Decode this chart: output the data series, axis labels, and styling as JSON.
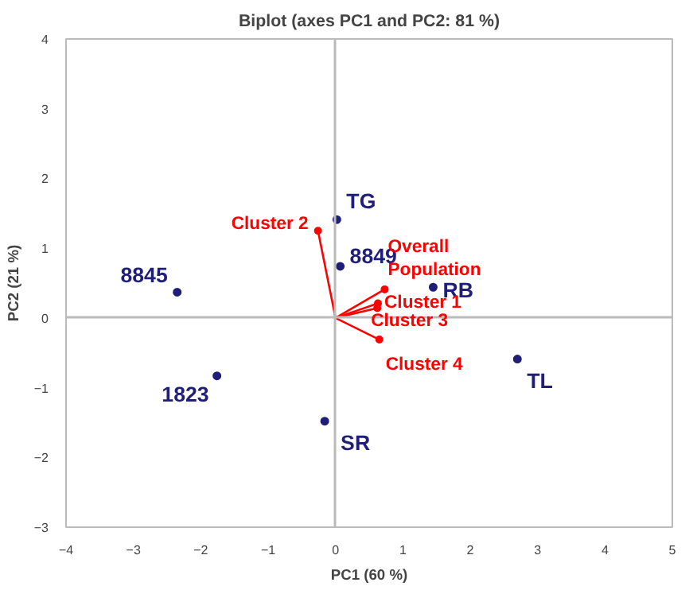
{
  "chart_data": {
    "type": "scatter",
    "title": "Biplot (axes PC1 and PC2: 81 %)",
    "xlabel": "PC1 (60 %)",
    "ylabel": "PC2 (21 %)",
    "xlim": [
      -4,
      5
    ],
    "ylim": [
      -3,
      4
    ],
    "xticks": [
      -4,
      -3,
      -2,
      -1,
      0,
      1,
      2,
      3,
      4,
      5
    ],
    "yticks": [
      -3,
      -2,
      -1,
      0,
      1,
      2,
      3,
      4
    ],
    "marker": "circle",
    "series": [
      {
        "name": "TG",
        "color": "#1f1f7a",
        "x": [
          0.02
        ],
        "values": [
          1.41
        ]
      },
      {
        "name": "8849",
        "color": "#1f1f7a",
        "x": [
          0.07
        ],
        "values": [
          0.74
        ]
      },
      {
        "name": "8845",
        "color": "#1f1f7a",
        "x": [
          -2.35
        ],
        "values": [
          0.37
        ]
      },
      {
        "name": "1823",
        "color": "#1f1f7a",
        "x": [
          -1.76
        ],
        "values": [
          -0.83
        ]
      },
      {
        "name": "SR",
        "color": "#1f1f7a",
        "x": [
          -0.16
        ],
        "values": [
          -1.48
        ]
      },
      {
        "name": "RB",
        "color": "#1f1f7a",
        "x": [
          1.45
        ],
        "values": [
          0.44
        ]
      },
      {
        "name": "TL",
        "color": "#1f1f7a",
        "x": [
          2.7
        ],
        "values": [
          -0.59
        ]
      },
      {
        "name": "Cluster 2",
        "type": "line",
        "color": "#ff0000",
        "x": [
          0,
          -0.26
        ],
        "values": [
          0,
          1.25
        ]
      },
      {
        "name": "Overall Population",
        "type": "line",
        "color": "#ff0000",
        "x": [
          0,
          0.73
        ],
        "values": [
          0,
          0.41
        ]
      },
      {
        "name": "Cluster 1",
        "type": "line",
        "color": "#ff0000",
        "x": [
          0,
          0.63
        ],
        "values": [
          0,
          0.21
        ]
      },
      {
        "name": "Cluster 3",
        "type": "line",
        "color": "#ff0000",
        "x": [
          0,
          0.62
        ],
        "values": [
          0,
          0.14
        ]
      },
      {
        "name": "Cluster 4",
        "type": "line",
        "color": "#ff0000",
        "x": [
          0,
          0.65
        ],
        "values": [
          0,
          -0.31
        ]
      }
    ]
  }
}
